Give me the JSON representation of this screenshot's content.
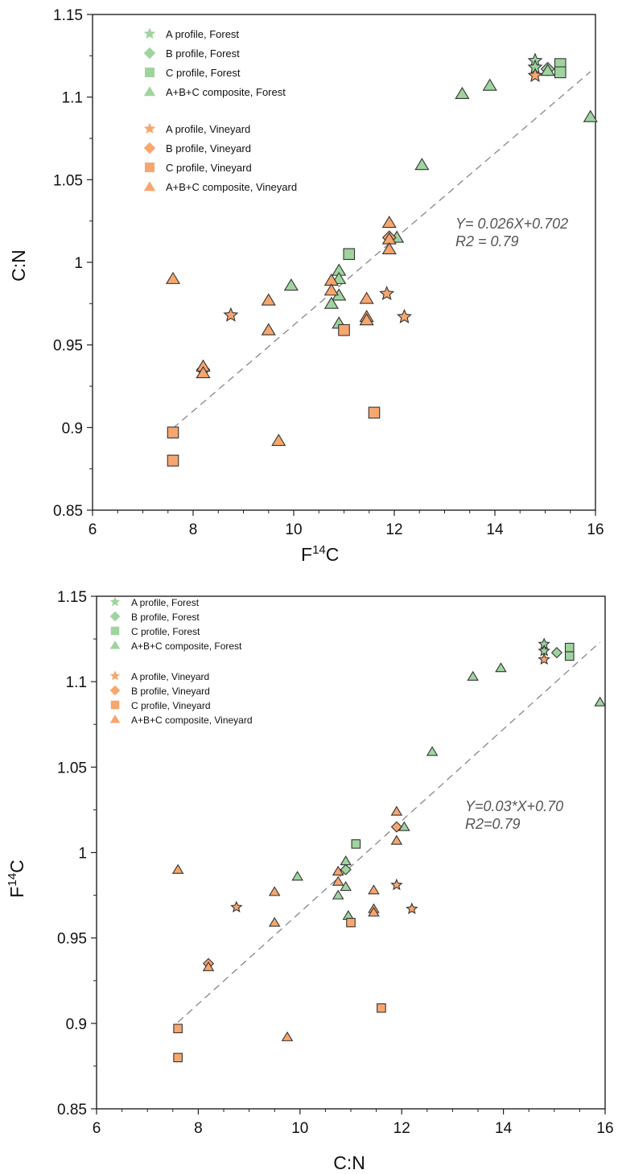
{
  "chart_data": [
    {
      "type": "scatter",
      "xlabel_main": "F",
      "xlabel_sup": "14",
      "xlabel_tail": "C",
      "ylabel": "C:N",
      "xlim": [
        6,
        16
      ],
      "ylim": [
        0.85,
        1.15
      ],
      "x_ticks": [
        "6",
        "8",
        "10",
        "12",
        "14",
        "16"
      ],
      "y_ticks": [
        "0.85",
        "0.9",
        "0.95",
        "1",
        "1.05",
        "1.1",
        "1.15"
      ],
      "fit_line": {
        "equation": "Y= 0.026X+0.702",
        "r2": "R2 = 0.79",
        "x_range": [
          7.6,
          15.9
        ],
        "slope": 0.026,
        "intercept": 0.702
      },
      "legend": [
        {
          "label": "A profile, Forest",
          "marker": "star",
          "color": "#9fd49f"
        },
        {
          "label": "B profile, Forest",
          "marker": "diamond",
          "color": "#9fd49f"
        },
        {
          "label": "C profile, Forest",
          "marker": "square",
          "color": "#9fd49f"
        },
        {
          "label": "A+B+C composite, Forest",
          "marker": "triangle",
          "color": "#9fd49f"
        },
        {
          "label": "A profile, Vineyard",
          "marker": "star",
          "color": "#f7a66e"
        },
        {
          "label": "B profile, Vineyard",
          "marker": "diamond",
          "color": "#f7a66e"
        },
        {
          "label": "C profile, Vineyard",
          "marker": "square",
          "color": "#f7a66e"
        },
        {
          "label": "A+B+C composite, Vineyard",
          "marker": "triangle",
          "color": "#f7a66e"
        }
      ],
      "series": [
        {
          "name": "A profile, Forest",
          "marker": "star",
          "color": "#9fd49f",
          "points": [
            [
              14.8,
              1.122
            ],
            [
              14.8,
              1.118
            ]
          ]
        },
        {
          "name": "B profile, Forest",
          "marker": "diamond",
          "color": "#9fd49f",
          "points": [
            [
              15.05,
              1.117
            ]
          ]
        },
        {
          "name": "C profile, Forest",
          "marker": "square",
          "color": "#9fd49f",
          "points": [
            [
              11.1,
              1.005
            ],
            [
              15.3,
              1.12
            ],
            [
              15.3,
              1.115
            ]
          ]
        },
        {
          "name": "A+B+C composite, Forest",
          "marker": "triangle",
          "color": "#9fd49f",
          "points": [
            [
              13.35,
              1.102
            ],
            [
              13.9,
              1.107
            ],
            [
              12.55,
              1.059
            ],
            [
              15.05,
              1.116
            ],
            [
              15.9,
              1.088
            ],
            [
              12.05,
              1.015
            ],
            [
              10.9,
              0.995
            ],
            [
              10.9,
              0.99
            ],
            [
              10.9,
              0.98
            ],
            [
              10.75,
              0.975
            ],
            [
              9.95,
              0.986
            ],
            [
              10.9,
              0.963
            ]
          ]
        },
        {
          "name": "A profile, Vineyard",
          "marker": "star",
          "color": "#f7a66e",
          "points": [
            [
              14.8,
              1.113
            ],
            [
              8.75,
              0.968
            ],
            [
              11.85,
              0.981
            ],
            [
              12.2,
              0.967
            ]
          ]
        },
        {
          "name": "B profile, Vineyard",
          "marker": "diamond",
          "color": "#f7a66e",
          "points": [
            [
              11.9,
              1.015
            ],
            [
              8.2,
              0.935
            ]
          ]
        },
        {
          "name": "C profile, Vineyard",
          "marker": "square",
          "color": "#f7a66e",
          "points": [
            [
              7.6,
              0.897
            ],
            [
              7.6,
              0.88
            ],
            [
              11.0,
              0.959
            ],
            [
              11.6,
              0.909
            ]
          ]
        },
        {
          "name": "A+B+C composite, Vineyard",
          "marker": "triangle",
          "color": "#f7a66e",
          "points": [
            [
              7.6,
              0.99
            ],
            [
              8.2,
              0.937
            ],
            [
              8.2,
              0.933
            ],
            [
              9.5,
              0.977
            ],
            [
              9.5,
              0.959
            ],
            [
              9.7,
              0.892
            ],
            [
              10.75,
              0.989
            ],
            [
              10.75,
              0.983
            ],
            [
              11.45,
              0.978
            ],
            [
              11.45,
              0.967
            ],
            [
              11.45,
              0.965
            ],
            [
              11.9,
              1.024
            ],
            [
              11.9,
              1.014
            ],
            [
              11.9,
              1.008
            ]
          ]
        }
      ]
    },
    {
      "type": "scatter",
      "xlabel": "C:N",
      "ylabel_main": "F",
      "ylabel_sup": "14",
      "ylabel_tail": "C",
      "xlim": [
        6,
        16
      ],
      "ylim": [
        0.85,
        1.15
      ],
      "x_ticks": [
        "6",
        "8",
        "10",
        "12",
        "14",
        "16"
      ],
      "y_ticks": [
        "0.85",
        "0.9",
        "0.95",
        "1",
        "1.05",
        "1.1",
        "1.15"
      ],
      "fit_line": {
        "equation": "Y=0.03*X+0.70",
        "r2": "R2=0.79",
        "x_range": [
          7.6,
          15.9
        ],
        "slope": 0.0268,
        "intercept": 0.697
      },
      "legend": [
        {
          "label": "A profile, Forest",
          "marker": "star",
          "color": "#9fd49f"
        },
        {
          "label": "B profile, Forest",
          "marker": "diamond",
          "color": "#9fd49f"
        },
        {
          "label": "C profile, Forest",
          "marker": "square",
          "color": "#9fd49f"
        },
        {
          "label": "A+B+C composite, Forest",
          "marker": "triangle",
          "color": "#9fd49f"
        },
        {
          "label": "A profile, Vineyard",
          "marker": "star",
          "color": "#f7a66e"
        },
        {
          "label": "B profile, Vineyard",
          "marker": "diamond",
          "color": "#f7a66e"
        },
        {
          "label": "C profile, Vineyard",
          "marker": "square",
          "color": "#f7a66e"
        },
        {
          "label": "A+B+C composite, Vineyard",
          "marker": "triangle",
          "color": "#f7a66e"
        }
      ],
      "series": [
        {
          "name": "A profile, Forest",
          "marker": "star",
          "color": "#9fd49f",
          "points": [
            [
              14.8,
              1.122
            ],
            [
              14.8,
              1.118
            ]
          ]
        },
        {
          "name": "B profile, Forest",
          "marker": "diamond",
          "color": "#9fd49f",
          "points": [
            [
              15.05,
              1.117
            ],
            [
              10.9,
              0.99
            ]
          ]
        },
        {
          "name": "C profile, Forest",
          "marker": "square",
          "color": "#9fd49f",
          "points": [
            [
              11.1,
              1.005
            ],
            [
              15.3,
              1.12
            ],
            [
              15.3,
              1.115
            ]
          ]
        },
        {
          "name": "A+B+C composite, Forest",
          "marker": "triangle",
          "color": "#9fd49f",
          "points": [
            [
              13.4,
              1.103
            ],
            [
              13.95,
              1.108
            ],
            [
              12.6,
              1.059
            ],
            [
              15.9,
              1.088
            ],
            [
              12.05,
              1.015
            ],
            [
              10.9,
              0.995
            ],
            [
              10.9,
              0.98
            ],
            [
              10.75,
              0.975
            ],
            [
              9.95,
              0.986
            ],
            [
              10.95,
              0.963
            ]
          ]
        },
        {
          "name": "A profile, Vineyard",
          "marker": "star",
          "color": "#f7a66e",
          "points": [
            [
              14.8,
              1.113
            ],
            [
              8.75,
              0.968
            ],
            [
              11.9,
              0.981
            ],
            [
              12.2,
              0.967
            ]
          ]
        },
        {
          "name": "B profile, Vineyard",
          "marker": "diamond",
          "color": "#f7a66e",
          "points": [
            [
              11.9,
              1.015
            ],
            [
              8.2,
              0.935
            ]
          ]
        },
        {
          "name": "C profile, Vineyard",
          "marker": "square",
          "color": "#f7a66e",
          "points": [
            [
              7.6,
              0.897
            ],
            [
              7.6,
              0.88
            ],
            [
              11.0,
              0.959
            ],
            [
              11.6,
              0.909
            ]
          ]
        },
        {
          "name": "A+B+C composite, Vineyard",
          "marker": "triangle",
          "color": "#f7a66e",
          "points": [
            [
              7.6,
              0.99
            ],
            [
              8.2,
              0.933
            ],
            [
              9.5,
              0.977
            ],
            [
              9.5,
              0.959
            ],
            [
              9.75,
              0.892
            ],
            [
              10.75,
              0.989
            ],
            [
              10.75,
              0.983
            ],
            [
              11.45,
              0.978
            ],
            [
              11.45,
              0.967
            ],
            [
              11.45,
              0.965
            ],
            [
              11.9,
              1.024
            ],
            [
              11.9,
              1.007
            ]
          ]
        }
      ]
    }
  ]
}
